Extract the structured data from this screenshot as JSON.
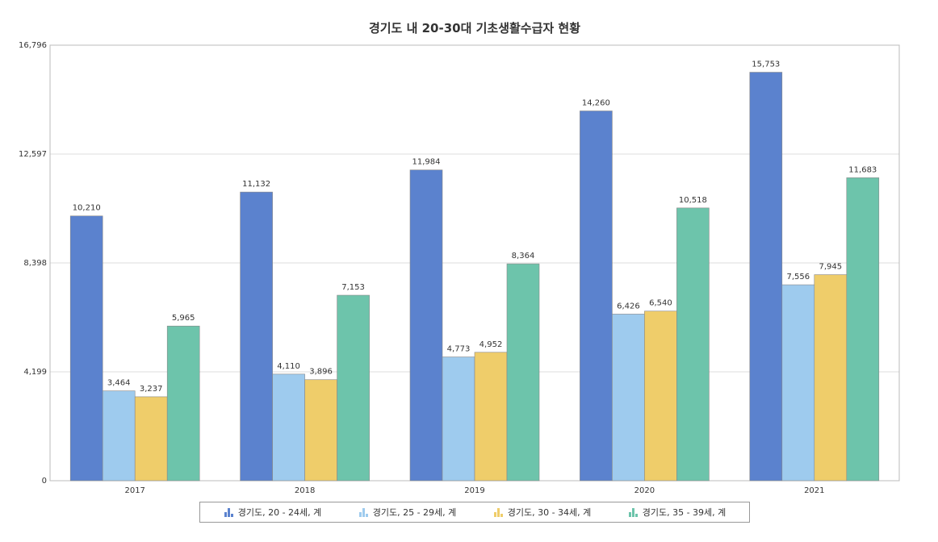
{
  "chart_data": {
    "type": "bar",
    "title": "경기도 내 20-30대 기초생활수급자 현황",
    "categories": [
      "2017",
      "2018",
      "2019",
      "2020",
      "2021"
    ],
    "series": [
      {
        "name": "경기도, 20 - 24세, 계",
        "color": "#5b82ce",
        "values": [
          10210,
          11132,
          11984,
          14260,
          15753
        ],
        "labels": [
          "10,210",
          "11,132",
          "11,984",
          "14,260",
          "15,753"
        ]
      },
      {
        "name": "경기도, 25 - 29세, 계",
        "color": "#9ecbee",
        "values": [
          3464,
          4110,
          4773,
          6426,
          7556
        ],
        "labels": [
          "3,464",
          "4,110",
          "4,773",
          "6,426",
          "7,556"
        ]
      },
      {
        "name": "경기도, 30 - 34세, 계",
        "color": "#efcd6a",
        "values": [
          3237,
          3896,
          4952,
          6540,
          7945
        ],
        "labels": [
          "3,237",
          "3,896",
          "4,952",
          "6,540",
          "7,945"
        ]
      },
      {
        "name": "경기도, 35 - 39세, 계",
        "color": "#6dc4ab",
        "values": [
          5965,
          7153,
          8364,
          10518,
          11683
        ],
        "labels": [
          "5,965",
          "7,153",
          "8,364",
          "10,518",
          "11,683"
        ]
      }
    ],
    "ylim": [
      0,
      16796
    ],
    "yticks": [
      0,
      4199,
      8398,
      12597,
      16796
    ],
    "ytick_labels": [
      "0",
      "4,199",
      "8,398",
      "12,597",
      "16,796"
    ],
    "grid": true,
    "legend_position": "bottom"
  }
}
